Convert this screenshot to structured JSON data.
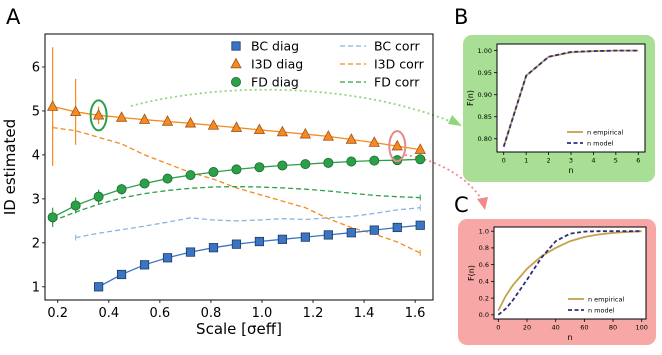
{
  "colors": {
    "bc": "#3b75c2",
    "i3d": "#f58a1f",
    "fd": "#2ca048",
    "bc_corr": "#8ab4e0",
    "inset_green_bg": "#a8df95",
    "inset_red_bg": "#f7a8a6",
    "n_empirical": "#c5a24a",
    "n_model": "#2e2e7a"
  },
  "panel_labels": [
    "A",
    "B",
    "C"
  ],
  "chart_data": [
    {
      "type": "line",
      "panel": "A",
      "xlabel": "Scale [σeff]",
      "ylabel": "ID estimated",
      "xlim": [
        0.15,
        1.67
      ],
      "ylim": [
        0.7,
        6.75
      ],
      "xticks": [
        "0.2",
        "0.4",
        "0.6",
        "0.8",
        "1.0",
        "1.2",
        "1.4",
        "1.6"
      ],
      "yticks": [
        "1",
        "2",
        "3",
        "4",
        "5",
        "6"
      ],
      "legend_placement": "top-right",
      "series": [
        {
          "name": "BC diag",
          "kind": "diag",
          "marker": "square",
          "colorKey": "bc",
          "x": [
            0.36,
            0.45,
            0.54,
            0.63,
            0.72,
            0.81,
            0.9,
            0.99,
            1.08,
            1.17,
            1.26,
            1.35,
            1.44,
            1.53,
            1.62
          ],
          "y": [
            1.0,
            1.28,
            1.5,
            1.66,
            1.79,
            1.89,
            1.97,
            2.03,
            2.08,
            2.13,
            2.18,
            2.23,
            2.29,
            2.35,
            2.4
          ]
        },
        {
          "name": "I3D diag",
          "kind": "diag",
          "marker": "triangle",
          "colorKey": "i3d",
          "x": [
            0.18,
            0.27,
            0.36,
            0.45,
            0.54,
            0.63,
            0.72,
            0.81,
            0.9,
            0.99,
            1.08,
            1.17,
            1.26,
            1.35,
            1.44,
            1.53,
            1.62
          ],
          "y": [
            5.1,
            4.98,
            4.9,
            4.85,
            4.8,
            4.76,
            4.72,
            4.67,
            4.62,
            4.57,
            4.52,
            4.47,
            4.42,
            4.35,
            4.28,
            4.2,
            4.12
          ],
          "err": [
            1.35,
            0.75,
            0.2,
            0,
            0,
            0,
            0,
            0,
            0,
            0,
            0,
            0,
            0,
            0,
            0,
            0,
            0
          ]
        },
        {
          "name": "FD diag",
          "kind": "diag",
          "marker": "circle",
          "colorKey": "fd",
          "x": [
            0.18,
            0.27,
            0.36,
            0.45,
            0.54,
            0.63,
            0.72,
            0.81,
            0.9,
            0.99,
            1.08,
            1.17,
            1.26,
            1.35,
            1.44,
            1.53,
            1.62
          ],
          "y": [
            2.58,
            2.85,
            3.05,
            3.22,
            3.35,
            3.46,
            3.54,
            3.61,
            3.67,
            3.72,
            3.76,
            3.79,
            3.82,
            3.85,
            3.87,
            3.88,
            3.9
          ],
          "err": [
            0.22,
            0.18,
            0.16,
            0.12,
            0.08,
            0.05,
            0,
            0,
            0,
            0,
            0,
            0,
            0,
            0,
            0,
            0,
            0
          ]
        },
        {
          "name": "BC corr",
          "kind": "corr",
          "colorKey": "bc_corr",
          "x": [
            0.27,
            0.36,
            0.45,
            0.54,
            0.63,
            0.72,
            0.81,
            0.9,
            0.99,
            1.08,
            1.17,
            1.26,
            1.35,
            1.44,
            1.53,
            1.62
          ],
          "y": [
            2.12,
            2.22,
            2.3,
            2.38,
            2.47,
            2.57,
            2.52,
            2.5,
            2.52,
            2.55,
            2.53,
            2.57,
            2.6,
            2.67,
            2.75,
            2.8
          ]
        },
        {
          "name": "I3D corr",
          "kind": "corr",
          "colorKey": "i3d",
          "x": [
            0.18,
            0.27,
            0.36,
            0.45,
            0.54,
            0.63,
            0.72,
            0.81,
            0.9,
            0.99,
            1.08,
            1.17,
            1.26,
            1.35,
            1.44,
            1.53,
            1.62
          ],
          "y": [
            4.62,
            4.55,
            4.4,
            4.25,
            4.0,
            3.8,
            3.6,
            3.45,
            3.25,
            3.1,
            2.95,
            2.8,
            2.55,
            2.35,
            2.2,
            2.02,
            1.77
          ]
        },
        {
          "name": "FD corr",
          "kind": "corr",
          "colorKey": "fd",
          "x": [
            0.18,
            0.27,
            0.36,
            0.45,
            0.54,
            0.63,
            0.72,
            0.81,
            0.9,
            0.99,
            1.08,
            1.17,
            1.26,
            1.35,
            1.44,
            1.53,
            1.62
          ],
          "y": [
            2.5,
            2.7,
            2.88,
            3.02,
            3.12,
            3.19,
            3.24,
            3.27,
            3.28,
            3.27,
            3.25,
            3.22,
            3.18,
            3.13,
            3.08,
            3.05,
            3.03
          ]
        }
      ],
      "circled_points": [
        {
          "x": 0.36,
          "y": 4.9,
          "colorKey": "fd"
        },
        {
          "x": 1.53,
          "y": 4.2,
          "colorKey": "inset_red_edge"
        }
      ]
    },
    {
      "type": "line",
      "panel": "B",
      "xlabel": "n",
      "ylabel": "F(n)",
      "xlim": [
        -0.3,
        6.3
      ],
      "ylim": [
        0.77,
        1.015
      ],
      "xticks": [
        "0",
        "1",
        "2",
        "3",
        "4",
        "5",
        "6"
      ],
      "yticks": [
        "0.80",
        "0.85",
        "0.90",
        "0.95",
        "1.00"
      ],
      "series": [
        {
          "name": "n empirical",
          "colorKey": "n_empirical",
          "dash": "solid",
          "x": [
            0,
            1,
            2,
            3,
            4,
            5,
            6
          ],
          "y": [
            0.782,
            0.943,
            0.986,
            0.996,
            0.999,
            1.0,
            1.0
          ]
        },
        {
          "name": "n model",
          "colorKey": "n_model",
          "dash": "dashed",
          "x": [
            0,
            1,
            2,
            3,
            4,
            5,
            6
          ],
          "y": [
            0.782,
            0.943,
            0.986,
            0.997,
            0.999,
            1.0,
            1.0
          ]
        }
      ]
    },
    {
      "type": "line",
      "panel": "C",
      "xlabel": "n",
      "ylabel": "F(n)",
      "xlim": [
        -3,
        103
      ],
      "ylim": [
        -0.05,
        1.05
      ],
      "xticks": [
        "0",
        "20",
        "40",
        "60",
        "80",
        "100"
      ],
      "yticks": [
        "0.0",
        "0.2",
        "0.4",
        "0.6",
        "0.8",
        "1.0"
      ],
      "series": [
        {
          "name": "n empirical",
          "colorKey": "n_empirical",
          "dash": "solid",
          "x": [
            0,
            5,
            10,
            20,
            30,
            40,
            50,
            60,
            70,
            80,
            90,
            100
          ],
          "y": [
            0.05,
            0.22,
            0.35,
            0.55,
            0.7,
            0.8,
            0.88,
            0.93,
            0.96,
            0.98,
            0.99,
            1.0
          ]
        },
        {
          "name": "n model",
          "colorKey": "n_model",
          "dash": "dashed",
          "x": [
            0,
            5,
            10,
            20,
            30,
            40,
            50,
            60,
            70,
            80,
            90,
            100
          ],
          "y": [
            0.0,
            0.07,
            0.17,
            0.42,
            0.68,
            0.88,
            0.97,
            0.995,
            1.0,
            1.0,
            1.0,
            1.0
          ]
        }
      ]
    }
  ]
}
